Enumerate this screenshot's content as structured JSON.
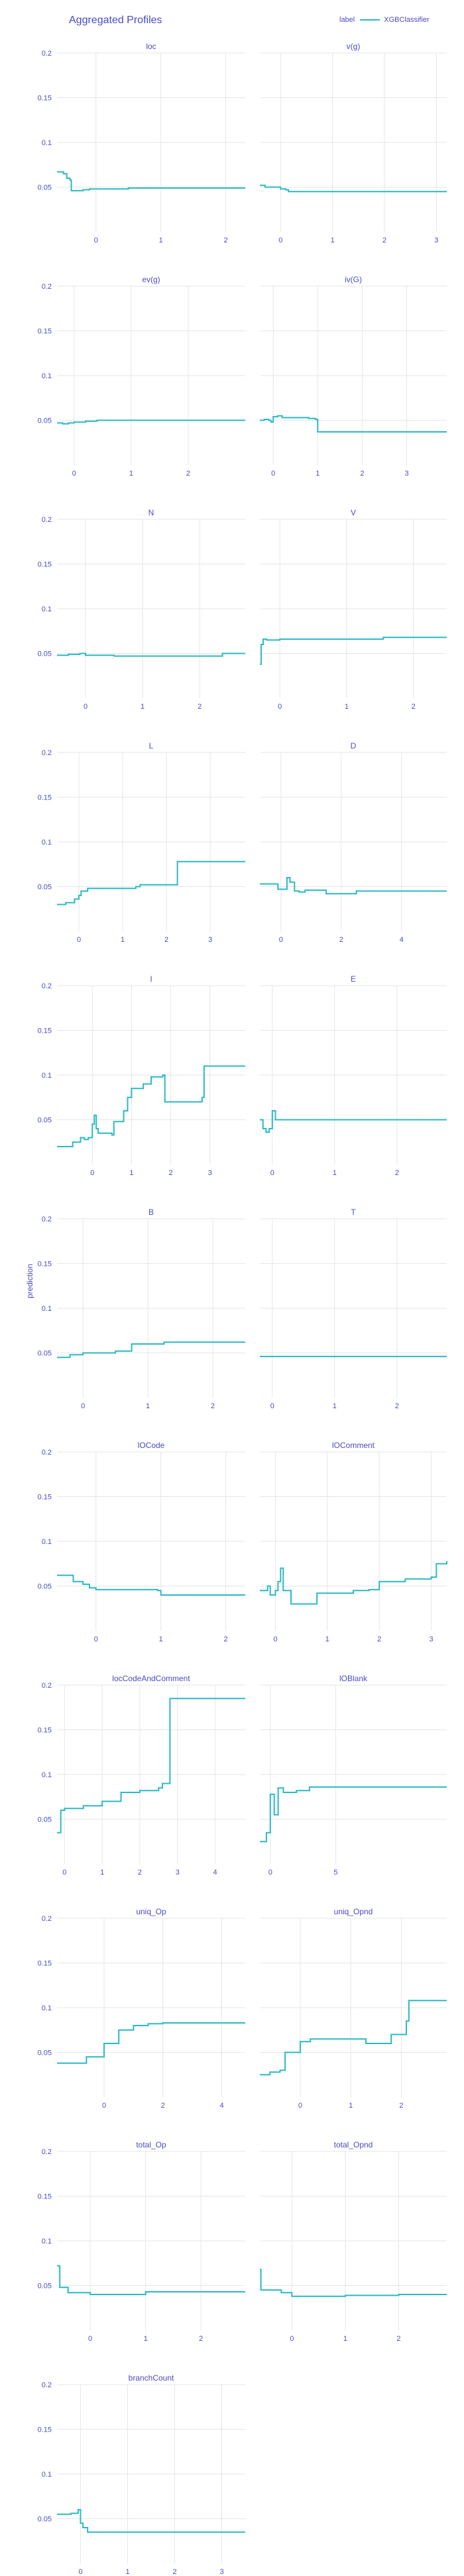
{
  "page": {
    "title": "Aggregated Profiles",
    "y_axis_title": "prediction",
    "legend": {
      "title": "label",
      "entries": [
        "XGBClassifier"
      ]
    }
  },
  "colors": {
    "line": "#2bb9c4",
    "text": "#4a4ac8",
    "grid": "#e6e6e6"
  },
  "chart_data": [
    {
      "type": "line",
      "title": "loc",
      "ylim": [
        0,
        0.2
      ],
      "yticks": [
        0.05,
        0.1,
        0.15,
        0.2
      ],
      "xlim": [
        -0.6,
        2.3
      ],
      "xticks": [
        0,
        1,
        2
      ],
      "series": [
        {
          "name": "XGBClassifier",
          "x": [
            -0.6,
            -0.5,
            -0.45,
            -0.4,
            -0.38,
            -0.3,
            -0.2,
            -0.1,
            0,
            0.2,
            0.5,
            1,
            1.5,
            2,
            2.3
          ],
          "y": [
            0.067,
            0.065,
            0.06,
            0.058,
            0.046,
            0.046,
            0.047,
            0.048,
            0.048,
            0.048,
            0.049,
            0.049,
            0.049,
            0.049,
            0.049
          ]
        }
      ]
    },
    {
      "type": "line",
      "title": "v(g)",
      "ylim": [
        0,
        0.2
      ],
      "yticks": [
        0.05,
        0.1,
        0.15,
        0.2
      ],
      "xlim": [
        -0.4,
        3.2
      ],
      "xticks": [
        0,
        1,
        2,
        3
      ],
      "series": [
        {
          "name": "XGBClassifier",
          "x": [
            -0.4,
            -0.3,
            -0.2,
            0,
            0.1,
            0.15,
            0.3,
            1,
            2,
            3,
            3.2
          ],
          "y": [
            0.052,
            0.05,
            0.05,
            0.048,
            0.047,
            0.045,
            0.045,
            0.045,
            0.045,
            0.045,
            0.045
          ]
        }
      ]
    },
    {
      "type": "line",
      "title": "ev(g)",
      "ylim": [
        0,
        0.2
      ],
      "yticks": [
        0.05,
        0.1,
        0.15,
        0.2
      ],
      "xlim": [
        -0.3,
        3.0
      ],
      "xticks": [
        0,
        1,
        2
      ],
      "series": [
        {
          "name": "XGBClassifier",
          "x": [
            -0.3,
            -0.2,
            -0.1,
            0,
            0.2,
            0.4,
            1,
            2,
            3.0
          ],
          "y": [
            0.047,
            0.046,
            0.047,
            0.048,
            0.049,
            0.05,
            0.05,
            0.05,
            0.05
          ]
        }
      ]
    },
    {
      "type": "line",
      "title": "iv(G)",
      "ylim": [
        0,
        0.2
      ],
      "yticks": [
        0.05,
        0.1,
        0.15,
        0.2
      ],
      "xlim": [
        -0.3,
        3.9
      ],
      "xticks": [
        0,
        1,
        2,
        3
      ],
      "series": [
        {
          "name": "XGBClassifier",
          "x": [
            -0.3,
            -0.2,
            -0.1,
            -0.05,
            0,
            0.1,
            0.2,
            0.5,
            0.8,
            0.95,
            1.0,
            2,
            3,
            3.9
          ],
          "y": [
            0.05,
            0.051,
            0.05,
            0.048,
            0.054,
            0.055,
            0.053,
            0.053,
            0.052,
            0.051,
            0.037,
            0.037,
            0.037,
            0.037
          ]
        }
      ]
    },
    {
      "type": "line",
      "title": "N",
      "ylim": [
        0,
        0.2
      ],
      "yticks": [
        0.05,
        0.1,
        0.15,
        0.2
      ],
      "xlim": [
        -0.5,
        2.8
      ],
      "xticks": [
        0,
        1,
        2
      ],
      "series": [
        {
          "name": "XGBClassifier",
          "x": [
            -0.5,
            -0.3,
            -0.1,
            0,
            0.2,
            0.5,
            1,
            1.5,
            2,
            2.3,
            2.4,
            2.8
          ],
          "y": [
            0.048,
            0.049,
            0.05,
            0.048,
            0.048,
            0.047,
            0.047,
            0.047,
            0.047,
            0.047,
            0.05,
            0.05
          ]
        }
      ]
    },
    {
      "type": "line",
      "title": "V",
      "ylim": [
        0,
        0.2
      ],
      "yticks": [
        0.05,
        0.1,
        0.15,
        0.2
      ],
      "xlim": [
        -0.3,
        2.5
      ],
      "xticks": [
        0,
        1,
        2
      ],
      "series": [
        {
          "name": "XGBClassifier",
          "x": [
            -0.3,
            -0.28,
            -0.25,
            -0.2,
            0,
            0.5,
            1,
            1.5,
            1.55,
            2,
            2.5
          ],
          "y": [
            0.038,
            0.06,
            0.066,
            0.065,
            0.066,
            0.066,
            0.066,
            0.066,
            0.068,
            0.068,
            0.068
          ]
        }
      ]
    },
    {
      "type": "line",
      "title": "L",
      "ylim": [
        0,
        0.2
      ],
      "yticks": [
        0.05,
        0.1,
        0.15,
        0.2
      ],
      "xlim": [
        -0.5,
        3.8
      ],
      "xticks": [
        0,
        1,
        2,
        3
      ],
      "series": [
        {
          "name": "XGBClassifier",
          "x": [
            -0.5,
            -0.3,
            -0.1,
            0,
            0.05,
            0.2,
            0.5,
            1,
            1.3,
            1.4,
            2,
            2.2,
            2.25,
            3,
            3.8
          ],
          "y": [
            0.03,
            0.032,
            0.036,
            0.04,
            0.045,
            0.048,
            0.048,
            0.048,
            0.05,
            0.052,
            0.052,
            0.052,
            0.078,
            0.078,
            0.078
          ]
        }
      ]
    },
    {
      "type": "line",
      "title": "D",
      "ylim": [
        0,
        0.2
      ],
      "yticks": [
        0.05,
        0.1,
        0.15,
        0.2
      ],
      "xlim": [
        -0.7,
        5.5
      ],
      "xticks": [
        0,
        2,
        4
      ],
      "series": [
        {
          "name": "XGBClassifier",
          "x": [
            -0.7,
            -0.2,
            -0.1,
            0,
            0.2,
            0.3,
            0.45,
            0.6,
            0.8,
            1.5,
            2.5,
            3.5,
            5.5
          ],
          "y": [
            0.053,
            0.053,
            0.047,
            0.047,
            0.06,
            0.055,
            0.045,
            0.044,
            0.046,
            0.042,
            0.045,
            0.045,
            0.045
          ]
        }
      ]
    },
    {
      "type": "line",
      "title": "I",
      "ylim": [
        0,
        0.2
      ],
      "yticks": [
        0.05,
        0.1,
        0.15,
        0.2
      ],
      "xlim": [
        -0.9,
        3.9
      ],
      "xticks": [
        0,
        1,
        2,
        3
      ],
      "series": [
        {
          "name": "XGBClassifier",
          "x": [
            -0.9,
            -0.6,
            -0.5,
            -0.3,
            -0.2,
            -0.1,
            0,
            0.05,
            0.1,
            0.15,
            0.5,
            0.55,
            0.8,
            0.9,
            1.0,
            1.3,
            1.5,
            1.8,
            1.85,
            2.5,
            2.8,
            2.85,
            3.2,
            3.9
          ],
          "y": [
            0.02,
            0.02,
            0.025,
            0.03,
            0.028,
            0.03,
            0.045,
            0.055,
            0.04,
            0.035,
            0.033,
            0.048,
            0.06,
            0.075,
            0.085,
            0.09,
            0.098,
            0.1,
            0.07,
            0.07,
            0.075,
            0.11,
            0.11,
            0.11
          ]
        }
      ]
    },
    {
      "type": "line",
      "title": "E",
      "ylim": [
        0,
        0.2
      ],
      "yticks": [
        0.05,
        0.1,
        0.15,
        0.2
      ],
      "xlim": [
        -0.2,
        2.8
      ],
      "xticks": [
        0,
        1,
        2
      ],
      "series": [
        {
          "name": "XGBClassifier",
          "x": [
            -0.2,
            -0.15,
            -0.1,
            -0.05,
            0,
            0.05,
            0.1,
            0.2,
            1,
            2,
            2.8
          ],
          "y": [
            0.05,
            0.04,
            0.036,
            0.04,
            0.06,
            0.05,
            0.05,
            0.05,
            0.05,
            0.05,
            0.05
          ]
        }
      ]
    },
    {
      "type": "line",
      "title": "B",
      "ylim": [
        0,
        0.2
      ],
      "yticks": [
        0.05,
        0.1,
        0.15,
        0.2
      ],
      "xlim": [
        -0.4,
        2.5
      ],
      "xticks": [
        0,
        1,
        2
      ],
      "series": [
        {
          "name": "XGBClassifier",
          "x": [
            -0.4,
            -0.2,
            0,
            0.3,
            0.5,
            0.7,
            0.75,
            1.0,
            1.2,
            1.25,
            2,
            2.5
          ],
          "y": [
            0.045,
            0.048,
            0.05,
            0.05,
            0.052,
            0.052,
            0.06,
            0.06,
            0.06,
            0.062,
            0.062,
            0.062
          ]
        }
      ]
    },
    {
      "type": "line",
      "title": "T",
      "ylim": [
        0,
        0.2
      ],
      "yticks": [
        0.05,
        0.1,
        0.15,
        0.2
      ],
      "xlim": [
        -0.2,
        2.8
      ],
      "xticks": [
        0,
        1,
        2
      ],
      "series": [
        {
          "name": "XGBClassifier",
          "x": [
            -0.2,
            1,
            2,
            2.8
          ],
          "y": [
            0.046,
            0.046,
            0.046,
            0.046
          ]
        }
      ]
    },
    {
      "type": "line",
      "title": "lOCode",
      "ylim": [
        0,
        0.2
      ],
      "yticks": [
        0.05,
        0.1,
        0.15,
        0.2
      ],
      "xlim": [
        -0.6,
        2.3
      ],
      "xticks": [
        0,
        1,
        2
      ],
      "series": [
        {
          "name": "XGBClassifier",
          "x": [
            -0.6,
            -0.4,
            -0.35,
            -0.2,
            -0.1,
            0,
            0.5,
            0.95,
            1.0,
            1.5,
            2.3
          ],
          "y": [
            0.062,
            0.062,
            0.055,
            0.052,
            0.048,
            0.046,
            0.046,
            0.045,
            0.04,
            0.04,
            0.04
          ]
        }
      ]
    },
    {
      "type": "line",
      "title": "lOComment",
      "ylim": [
        0,
        0.2
      ],
      "yticks": [
        0.05,
        0.1,
        0.15,
        0.2
      ],
      "xlim": [
        -0.3,
        3.3
      ],
      "xticks": [
        0,
        1,
        2,
        3
      ],
      "series": [
        {
          "name": "XGBClassifier",
          "x": [
            -0.3,
            -0.15,
            -0.1,
            0,
            0.05,
            0.1,
            0.15,
            0.3,
            0.7,
            0.8,
            1.5,
            1.8,
            2.0,
            2.5,
            3.0,
            3.1,
            3.3
          ],
          "y": [
            0.045,
            0.05,
            0.04,
            0.045,
            0.055,
            0.07,
            0.045,
            0.03,
            0.03,
            0.042,
            0.045,
            0.046,
            0.055,
            0.058,
            0.06,
            0.075,
            0.078
          ]
        }
      ]
    },
    {
      "type": "line",
      "title": "locCodeAndComment",
      "ylim": [
        0,
        0.2
      ],
      "yticks": [
        0.05,
        0.1,
        0.15,
        0.2
      ],
      "xlim": [
        -0.2,
        4.8
      ],
      "xticks": [
        0,
        1,
        2,
        3,
        4
      ],
      "series": [
        {
          "name": "XGBClassifier",
          "x": [
            -0.2,
            -0.1,
            0,
            0.5,
            1,
            1.5,
            2,
            2.5,
            2.6,
            2.8,
            4.8
          ],
          "y": [
            0.035,
            0.06,
            0.062,
            0.065,
            0.07,
            0.08,
            0.082,
            0.085,
            0.09,
            0.185,
            0.185
          ]
        }
      ]
    },
    {
      "type": "line",
      "title": "lOBlank",
      "ylim": [
        0,
        0.2
      ],
      "yticks": [
        0.05,
        0.1,
        0.15,
        0.2
      ],
      "xlim": [
        -0.8,
        13.5
      ],
      "xticks": [
        0,
        5
      ],
      "series": [
        {
          "name": "XGBClassifier",
          "x": [
            -0.8,
            -0.3,
            0,
            0.3,
            0.6,
            1.0,
            1.3,
            2,
            3,
            5,
            10,
            13.5
          ],
          "y": [
            0.025,
            0.035,
            0.078,
            0.055,
            0.085,
            0.08,
            0.08,
            0.082,
            0.086,
            0.086,
            0.086,
            0.086
          ]
        }
      ]
    },
    {
      "type": "line",
      "title": "uniq_Op",
      "ylim": [
        0,
        0.2
      ],
      "yticks": [
        0.05,
        0.1,
        0.15,
        0.2
      ],
      "xlim": [
        -1.6,
        4.8
      ],
      "xticks": [
        0,
        2,
        4
      ],
      "series": [
        {
          "name": "XGBClassifier",
          "x": [
            -1.6,
            -0.8,
            -0.6,
            0,
            0.5,
            1,
            1.5,
            2,
            4.8
          ],
          "y": [
            0.038,
            0.038,
            0.045,
            0.06,
            0.075,
            0.08,
            0.082,
            0.083,
            0.083
          ]
        }
      ]
    },
    {
      "type": "line",
      "title": "uniq_Opnd",
      "ylim": [
        0,
        0.2
      ],
      "yticks": [
        0.05,
        0.1,
        0.15,
        0.2
      ],
      "xlim": [
        -0.8,
        2.9
      ],
      "xticks": [
        0,
        1,
        2
      ],
      "series": [
        {
          "name": "XGBClassifier",
          "x": [
            -0.8,
            -0.6,
            -0.4,
            -0.3,
            0,
            0.2,
            0.7,
            1.3,
            1.8,
            2.1,
            2.15,
            2.9
          ],
          "y": [
            0.025,
            0.028,
            0.03,
            0.05,
            0.062,
            0.065,
            0.065,
            0.06,
            0.07,
            0.085,
            0.108,
            0.108
          ]
        }
      ]
    },
    {
      "type": "line",
      "title": "total_Op",
      "ylim": [
        0,
        0.2
      ],
      "yticks": [
        0.05,
        0.1,
        0.15,
        0.2
      ],
      "xlim": [
        -0.6,
        2.8
      ],
      "xticks": [
        0,
        1,
        2
      ],
      "series": [
        {
          "name": "XGBClassifier",
          "x": [
            -0.6,
            -0.55,
            -0.4,
            -0.2,
            0,
            0.5,
            0.9,
            1.0,
            2,
            2.8
          ],
          "y": [
            0.072,
            0.048,
            0.042,
            0.042,
            0.04,
            0.04,
            0.04,
            0.043,
            0.043,
            0.043
          ]
        }
      ]
    },
    {
      "type": "line",
      "title": "total_Opnd",
      "ylim": [
        0,
        0.2
      ],
      "yticks": [
        0.05,
        0.1,
        0.15,
        0.2
      ],
      "xlim": [
        -0.6,
        2.9
      ],
      "xticks": [
        0,
        1,
        2
      ],
      "series": [
        {
          "name": "XGBClassifier",
          "x": [
            -0.6,
            -0.58,
            -0.5,
            -0.2,
            0,
            0.5,
            1,
            2,
            2.9
          ],
          "y": [
            0.068,
            0.045,
            0.045,
            0.042,
            0.038,
            0.038,
            0.039,
            0.04,
            0.04
          ]
        }
      ]
    },
    {
      "type": "line",
      "title": "branchCount",
      "ylim": [
        0,
        0.2
      ],
      "yticks": [
        0.05,
        0.1,
        0.15,
        0.2
      ],
      "xlim": [
        -0.5,
        3.5
      ],
      "xticks": [
        0,
        1,
        2,
        3
      ],
      "series": [
        {
          "name": "XGBClassifier",
          "x": [
            -0.5,
            -0.2,
            -0.05,
            0,
            0.05,
            0.15,
            1,
            2,
            3,
            3.5
          ],
          "y": [
            0.055,
            0.056,
            0.06,
            0.045,
            0.04,
            0.035,
            0.035,
            0.035,
            0.035,
            0.035
          ]
        }
      ]
    }
  ]
}
